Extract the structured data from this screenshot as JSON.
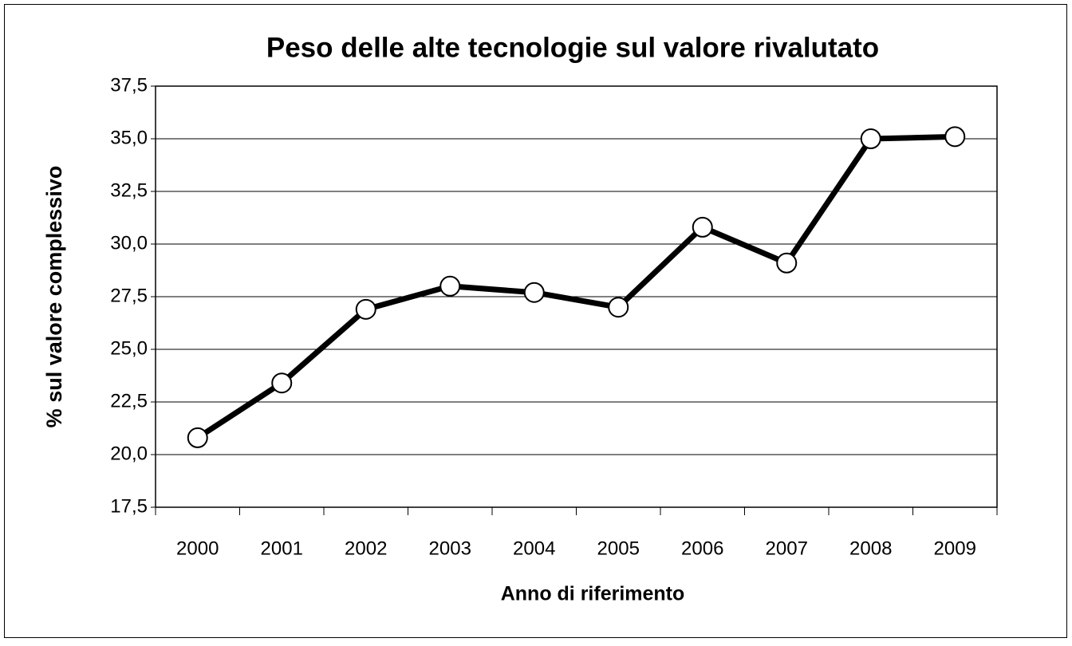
{
  "chart_data": {
    "type": "line",
    "title": "Peso delle alte tecnologie sul valore rivalutato",
    "x_label": "Anno di riferimento",
    "y_label": "% sul valore complessivo",
    "categories": [
      "2000",
      "2001",
      "2002",
      "2003",
      "2004",
      "2005",
      "2006",
      "2007",
      "2008",
      "2009"
    ],
    "series": [
      {
        "color": "#000000",
        "values": [
          20.8,
          23.4,
          26.9,
          28.0,
          27.7,
          27.0,
          30.8,
          29.1,
          35.0,
          35.1
        ]
      }
    ],
    "ylim": [
      17.5,
      37.5
    ],
    "yticks": [
      {
        "value": 17.5,
        "label": "17,5"
      },
      {
        "value": 20,
        "label": "20,0"
      },
      {
        "value": 22.5,
        "label": "22,5"
      },
      {
        "value": 25,
        "label": "25,0"
      },
      {
        "value": 27.5,
        "label": "27,5"
      },
      {
        "value": 30,
        "label": "30,0"
      },
      {
        "value": 32.5,
        "label": "32,5"
      },
      {
        "value": 35,
        "label": "35,0"
      },
      {
        "value": 37.5,
        "label": "37,5"
      }
    ],
    "grid": true
  }
}
